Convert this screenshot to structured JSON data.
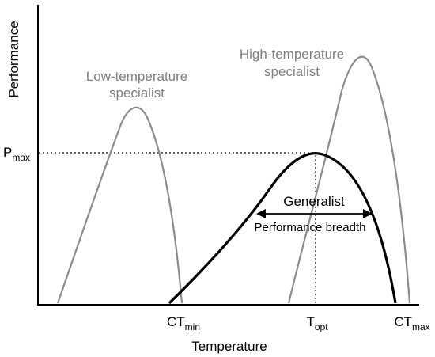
{
  "axes": {
    "y_label": "Performance",
    "x_label": "Temperature"
  },
  "labels": {
    "pmax_main": "P",
    "pmax_sub": "max",
    "low_line1": "Low-temperature",
    "low_line2": "specialist",
    "high_line1": "High-temperature",
    "high_line2": "specialist",
    "generalist": "Generalist",
    "breadth": "Performance breadth",
    "ctmin_main": "CT",
    "ctmin_sub": "min",
    "topt_main": "T",
    "topt_sub": "opt",
    "ctmax_main": "CT",
    "ctmax_sub": "max"
  },
  "colors": {
    "axis": "#000000",
    "specialist_curve": "#8c8c8c",
    "specialist_text": "#808080",
    "generalist_curve": "#000000"
  }
}
